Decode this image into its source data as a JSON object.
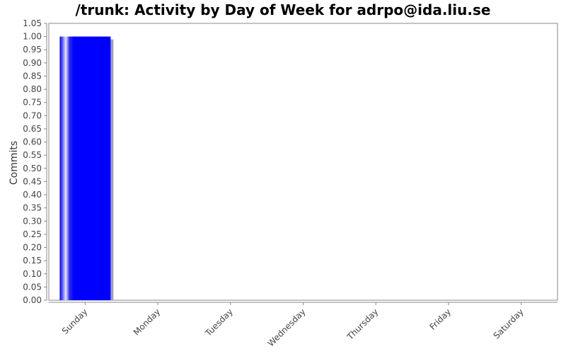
{
  "chart_data": {
    "type": "bar",
    "title": "/trunk: Activity by Day of Week for adrpo@ida.liu.se",
    "xlabel": "",
    "ylabel": "Commits",
    "categories": [
      "Sunday",
      "Monday",
      "Tuesday",
      "Wednesday",
      "Thursday",
      "Friday",
      "Saturday"
    ],
    "values": [
      1,
      0,
      0,
      0,
      0,
      0,
      0
    ],
    "ylim": [
      0,
      1.05
    ],
    "y_ticks": [
      "0.00",
      "0.05",
      "0.10",
      "0.15",
      "0.20",
      "0.25",
      "0.30",
      "0.35",
      "0.40",
      "0.45",
      "0.50",
      "0.55",
      "0.60",
      "0.65",
      "0.70",
      "0.75",
      "0.80",
      "0.85",
      "0.90",
      "0.95",
      "1.00",
      "1.05"
    ],
    "grid": false,
    "legend": "none",
    "bar_color": "#0000ff",
    "shadow_color": "#a0a0a0"
  }
}
